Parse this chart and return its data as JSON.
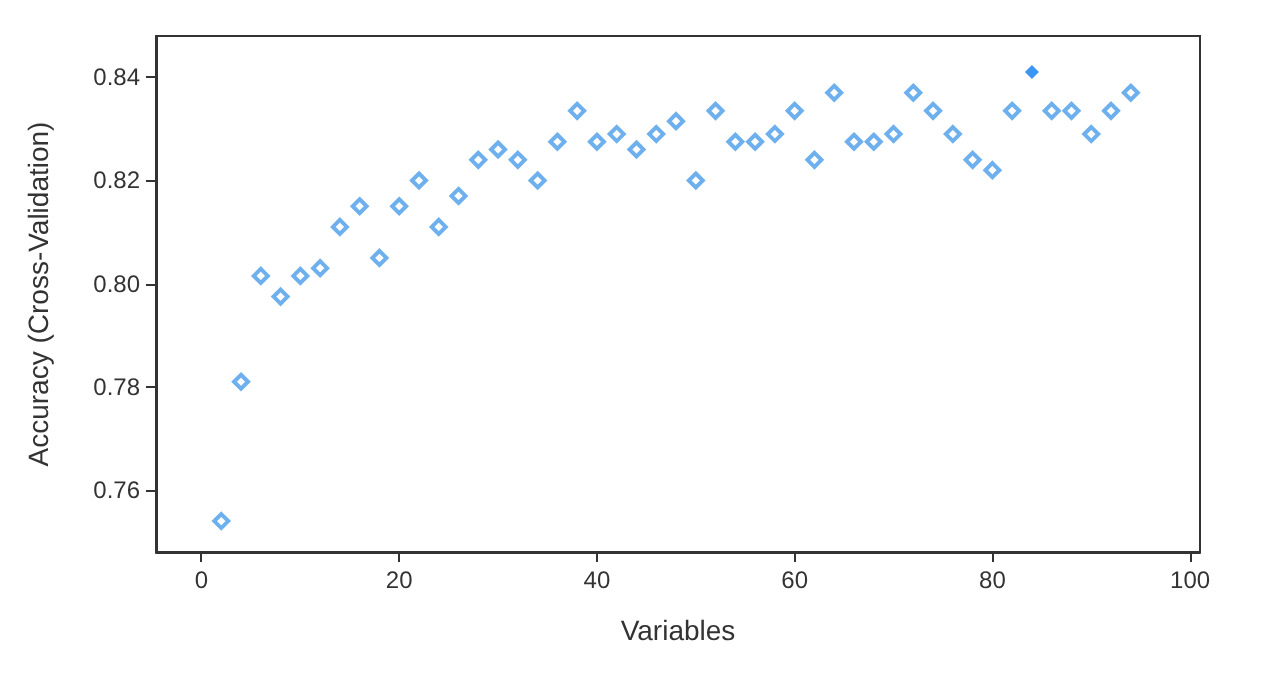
{
  "chart_data": {
    "type": "scatter",
    "xlabel": "Variables",
    "ylabel": "Accuracy (Cross-Validation)",
    "xlim": [
      -4.6,
      101
    ],
    "xticks": [
      0,
      20,
      40,
      60,
      80,
      100
    ],
    "ylim": [
      0.748,
      0.848
    ],
    "yticks": [
      0.76,
      0.78,
      {
        "value": 0.8,
        "label": "0.80"
      },
      0.82,
      0.84
    ],
    "grid": false,
    "marker": "diamond",
    "series": [
      {
        "color": "#4a9ce8",
        "x": [
          2,
          4,
          6,
          8,
          10,
          12,
          14,
          16,
          18,
          20,
          22,
          24,
          26,
          28,
          30,
          32,
          34,
          36,
          38,
          40,
          42,
          44,
          46,
          48,
          50,
          52,
          54,
          56,
          58,
          60,
          62,
          64,
          66,
          68,
          70,
          72,
          74,
          76,
          78,
          80,
          82,
          86,
          88,
          90,
          92,
          94
        ],
        "values": [
          0.754,
          0.781,
          0.8015,
          0.7975,
          0.8015,
          0.803,
          0.811,
          0.815,
          0.805,
          0.815,
          0.82,
          0.811,
          0.817,
          0.824,
          0.826,
          0.824,
          0.82,
          0.8275,
          0.8335,
          0.8275,
          0.829,
          0.826,
          0.829,
          0.8315,
          0.82,
          0.8335,
          0.8275,
          0.8275,
          0.829,
          0.8335,
          0.824,
          0.837,
          0.8275,
          0.8275,
          0.829,
          0.837,
          0.8335,
          0.829,
          0.824,
          0.822,
          0.8335,
          0.8335,
          0.8335,
          0.829,
          0.8335,
          0.837
        ]
      },
      {
        "color": "#0a7cf0",
        "x": [
          84
        ],
        "values": [
          0.841
        ]
      }
    ]
  }
}
